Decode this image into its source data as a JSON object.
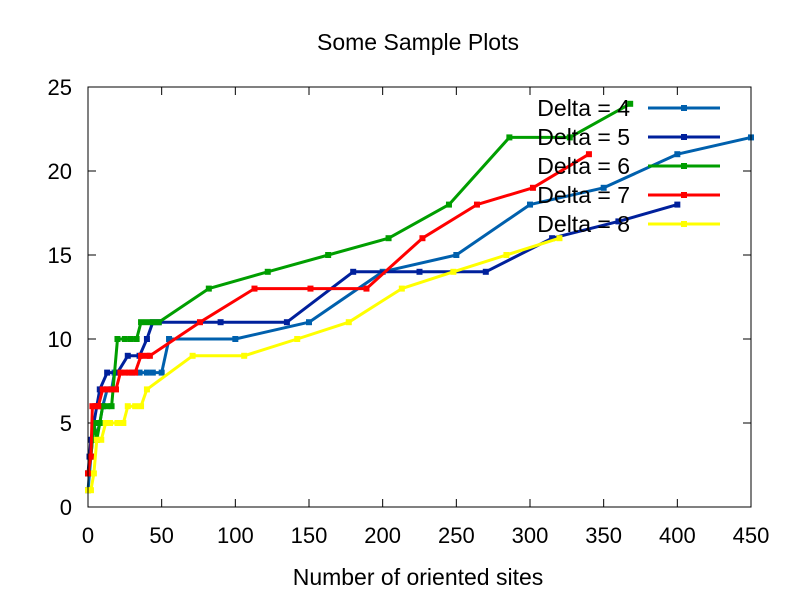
{
  "chart_data": {
    "type": "line",
    "title": "Some Sample Plots",
    "xlabel": "Number of oriented sites",
    "ylabel": "",
    "xlim": [
      0,
      450
    ],
    "ylim": [
      0,
      25
    ],
    "xticks": [
      "0",
      "50",
      "100",
      "150",
      "200",
      "250",
      "300",
      "350",
      "400",
      "450"
    ],
    "yticks": [
      "0",
      "5",
      "10",
      "15",
      "20",
      "25"
    ],
    "grid": false,
    "legend_position": "top-right",
    "series": [
      {
        "name": "Delta = 4",
        "color": "#0060ad",
        "points": [
          [
            0,
            1
          ],
          [
            1,
            2
          ],
          [
            2,
            3
          ],
          [
            3,
            4
          ],
          [
            5,
            4
          ],
          [
            8,
            5
          ],
          [
            10,
            6
          ],
          [
            13,
            7
          ],
          [
            16,
            7
          ],
          [
            18,
            8
          ],
          [
            30,
            8
          ],
          [
            35,
            8
          ],
          [
            40,
            8
          ],
          [
            44,
            8
          ],
          [
            50,
            8
          ],
          [
            55,
            10
          ],
          [
            100,
            10
          ],
          [
            150,
            11
          ],
          [
            200,
            14
          ],
          [
            250,
            15
          ],
          [
            300,
            18
          ],
          [
            350,
            19
          ],
          [
            400,
            21
          ],
          [
            450,
            22
          ]
        ]
      },
      {
        "name": "Delta = 5",
        "color": "#00209c",
        "points": [
          [
            0,
            2
          ],
          [
            1,
            3
          ],
          [
            2,
            4
          ],
          [
            4,
            5
          ],
          [
            6,
            6
          ],
          [
            8,
            7
          ],
          [
            13,
            8
          ],
          [
            20,
            8
          ],
          [
            27,
            9
          ],
          [
            35,
            9
          ],
          [
            40,
            10
          ],
          [
            44,
            11
          ],
          [
            48,
            11
          ],
          [
            90,
            11
          ],
          [
            135,
            11
          ],
          [
            180,
            14
          ],
          [
            225,
            14
          ],
          [
            270,
            14
          ],
          [
            315,
            16
          ],
          [
            360,
            17
          ],
          [
            400,
            18
          ]
        ]
      },
      {
        "name": "Delta = 6",
        "color": "#009e00",
        "points": [
          [
            0,
            2
          ],
          [
            2,
            3
          ],
          [
            4,
            5
          ],
          [
            6,
            4
          ],
          [
            8,
            5
          ],
          [
            10,
            6
          ],
          [
            13,
            6
          ],
          [
            16,
            6
          ],
          [
            20,
            10
          ],
          [
            25,
            10
          ],
          [
            29,
            10
          ],
          [
            33,
            10
          ],
          [
            36,
            11
          ],
          [
            40,
            11
          ],
          [
            44,
            11
          ],
          [
            48,
            11
          ],
          [
            82,
            13
          ],
          [
            122,
            14
          ],
          [
            163,
            15
          ],
          [
            204,
            16
          ],
          [
            245,
            18
          ],
          [
            286,
            22
          ],
          [
            327,
            22
          ],
          [
            368,
            24
          ]
        ]
      },
      {
        "name": "Delta = 7",
        "color": "#ff0000",
        "points": [
          [
            0,
            2
          ],
          [
            2,
            3
          ],
          [
            3,
            6
          ],
          [
            5,
            6
          ],
          [
            7,
            6
          ],
          [
            10,
            7
          ],
          [
            13,
            7
          ],
          [
            16,
            7
          ],
          [
            19,
            7
          ],
          [
            22,
            8
          ],
          [
            25,
            8
          ],
          [
            28,
            8
          ],
          [
            32,
            8
          ],
          [
            36,
            9
          ],
          [
            40,
            9
          ],
          [
            42,
            9
          ],
          [
            76,
            11
          ],
          [
            113,
            13
          ],
          [
            151,
            13
          ],
          [
            189,
            13
          ],
          [
            227,
            16
          ],
          [
            264,
            18
          ],
          [
            302,
            19
          ],
          [
            340,
            21
          ]
        ]
      },
      {
        "name": "Delta = 8",
        "color": "#ffff00",
        "points": [
          [
            0,
            1
          ],
          [
            2,
            1
          ],
          [
            4,
            2
          ],
          [
            6,
            4
          ],
          [
            9,
            4
          ],
          [
            12,
            5
          ],
          [
            15,
            5
          ],
          [
            20,
            5
          ],
          [
            24,
            5
          ],
          [
            27,
            6
          ],
          [
            32,
            6
          ],
          [
            36,
            6
          ],
          [
            40,
            7
          ],
          [
            71,
            9
          ],
          [
            106,
            9
          ],
          [
            142,
            10
          ],
          [
            177,
            11
          ],
          [
            213,
            13
          ],
          [
            248,
            14
          ],
          [
            284,
            15
          ],
          [
            320,
            16
          ]
        ]
      }
    ]
  }
}
